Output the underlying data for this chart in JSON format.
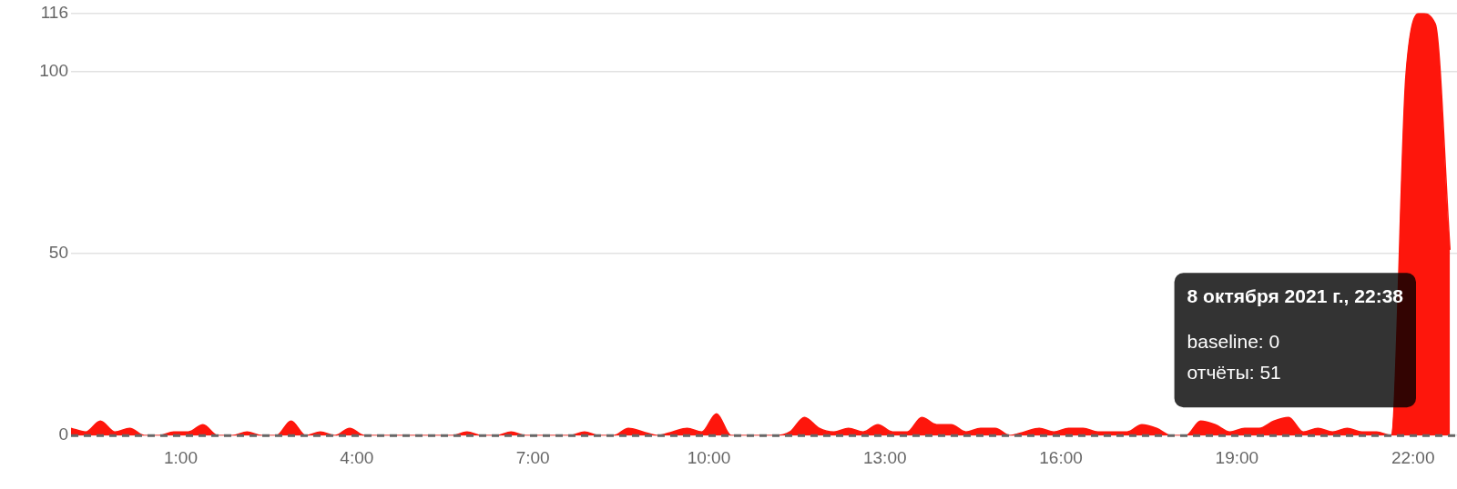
{
  "chart_data": {
    "type": "area",
    "x": [
      -0.87,
      -0.62,
      -0.37,
      -0.12,
      0.13,
      0.38,
      0.63,
      0.88,
      1.13,
      1.38,
      1.63,
      1.88,
      2.13,
      2.38,
      2.63,
      2.88,
      3.13,
      3.38,
      3.63,
      3.88,
      4.13,
      4.38,
      4.63,
      4.88,
      5.13,
      5.38,
      5.63,
      5.88,
      6.13,
      6.38,
      6.63,
      6.88,
      7.13,
      7.38,
      7.63,
      7.88,
      8.13,
      8.38,
      8.63,
      8.88,
      9.13,
      9.38,
      9.63,
      9.88,
      10.13,
      10.38,
      10.63,
      10.88,
      11.13,
      11.38,
      11.63,
      11.88,
      12.13,
      12.38,
      12.63,
      12.88,
      13.13,
      13.38,
      13.63,
      13.88,
      14.13,
      14.38,
      14.63,
      14.88,
      15.13,
      15.38,
      15.63,
      15.88,
      16.13,
      16.38,
      16.63,
      16.88,
      17.13,
      17.38,
      17.63,
      17.88,
      18.13,
      18.38,
      18.63,
      18.88,
      19.13,
      19.38,
      19.63,
      19.88,
      20.13,
      20.38,
      20.63,
      20.88,
      21.13,
      21.38,
      21.63,
      21.88,
      22.13,
      22.38,
      22.63
    ],
    "series": [
      {
        "color": "#fe160c",
        "values": [
          2,
          1,
          4,
          1,
          2,
          0,
          0,
          1,
          1,
          3,
          0,
          0,
          1,
          0,
          0,
          4,
          0,
          1,
          0,
          2,
          0,
          0,
          0,
          0,
          0,
          0,
          0,
          1,
          0,
          0,
          1,
          0,
          0,
          0,
          0,
          1,
          0,
          0,
          2,
          1,
          0,
          1,
          2,
          1,
          6,
          0,
          0,
          0,
          0,
          1,
          5,
          2,
          1,
          2,
          1,
          3,
          1,
          1,
          5,
          3,
          3,
          1,
          2,
          2,
          0,
          1,
          2,
          1,
          2,
          2,
          1,
          1,
          1,
          3,
          2,
          0,
          0,
          4,
          3,
          1,
          2,
          2,
          4,
          5,
          1,
          2,
          1,
          2,
          1,
          1,
          0,
          99,
          116,
          113,
          51
        ]
      }
    ],
    "xlim": [
      -0.87,
      22.75
    ],
    "xticks": [
      {
        "value": 1,
        "label": "1:00"
      },
      {
        "value": 4,
        "label": "4:00"
      },
      {
        "value": 7,
        "label": "7:00"
      },
      {
        "value": 10,
        "label": "10:00"
      },
      {
        "value": 13,
        "label": "13:00"
      },
      {
        "value": 16,
        "label": "16:00"
      },
      {
        "value": 19,
        "label": "19:00"
      },
      {
        "value": 22,
        "label": "22:00"
      }
    ],
    "ylim": [
      0,
      116
    ],
    "yticks": [
      0,
      50,
      100,
      116
    ],
    "grid": "y",
    "legend": false,
    "marker": "none",
    "ref_lines": [
      {
        "axis": "y",
        "value": 0,
        "color": "#666666",
        "line_style": "dashed"
      }
    ],
    "annotations": [
      "8 октября 2021 г., 22:38",
      "baseline: 0",
      "отчёты: 51"
    ]
  }
}
